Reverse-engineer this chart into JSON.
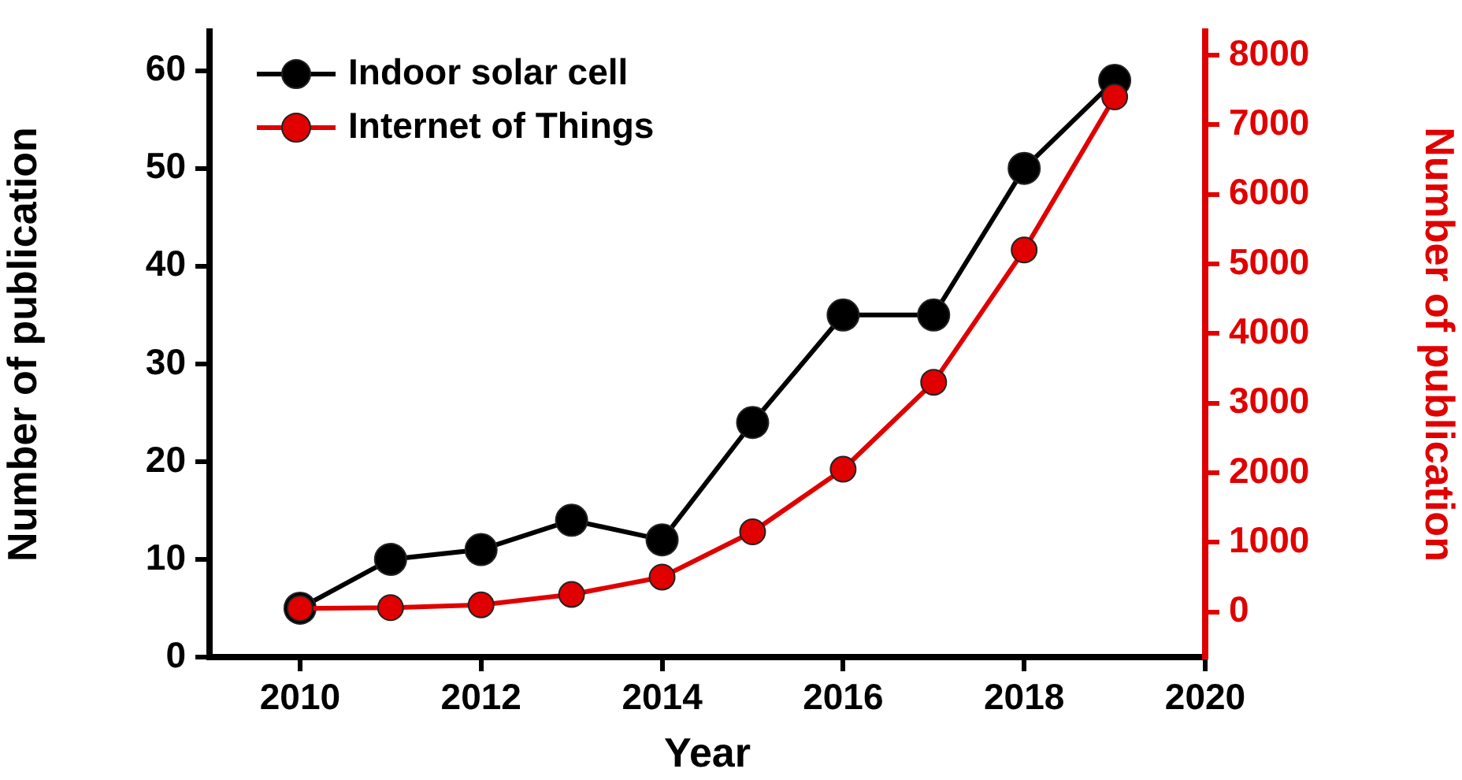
{
  "chart_data": {
    "type": "line",
    "xlabel": "Year",
    "ylabel": "Number of publication",
    "y2label": "Number of publication",
    "x": [
      2010,
      2011,
      2012,
      2013,
      2014,
      2015,
      2016,
      2017,
      2018,
      2019
    ],
    "series": [
      {
        "name": "Indoor solar cell",
        "color": "#000000",
        "values": [
          5,
          10,
          11,
          14,
          12,
          24,
          35,
          35,
          50,
          59
        ]
      },
      {
        "name": "Internet of Things",
        "color": "#e00000",
        "axis": "y2",
        "values": [
          50,
          60,
          100,
          250,
          500,
          1150,
          2050,
          3300,
          5200,
          7400
        ]
      }
    ],
    "xlim": [
      2009,
      2020
    ],
    "xticks": [
      2010,
      2012,
      2014,
      2016,
      2018,
      2020
    ],
    "ylim": [
      0,
      64
    ],
    "yticks": [
      0,
      10,
      20,
      30,
      40,
      50,
      60
    ],
    "y2lim": [
      -650,
      8340
    ],
    "y2ticks": [
      0,
      1000,
      2000,
      3000,
      4000,
      5000,
      6000,
      7000,
      8000
    ],
    "legend": "top left",
    "marker": "circle",
    "line_style": "solid",
    "grid": false
  }
}
